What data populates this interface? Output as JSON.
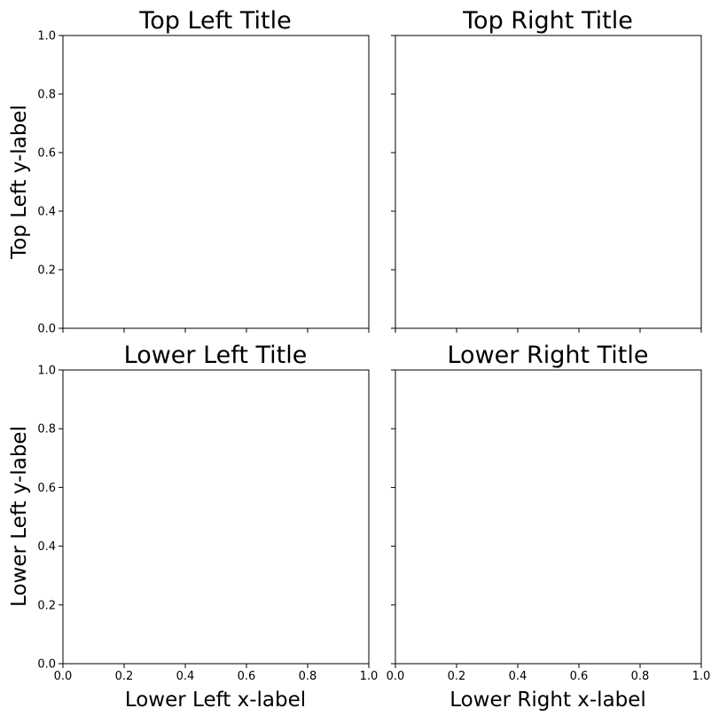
{
  "chart_data": [
    {
      "type": "scatter",
      "title": "Top Left Title",
      "xlabel": "",
      "ylabel": "Top Left y-label",
      "xlim": [
        0,
        1
      ],
      "ylim": [
        0,
        1
      ],
      "xticks": [
        0,
        0.2,
        0.4,
        0.6,
        0.8,
        1
      ],
      "yticks": [
        0,
        0.2,
        0.4,
        0.6,
        0.8,
        1
      ],
      "xtick_labels": [],
      "ytick_labels": [
        "0.0",
        "0.2",
        "0.4",
        "0.6",
        "0.8",
        "1.0"
      ],
      "series": [],
      "grid": false
    },
    {
      "type": "scatter",
      "title": "Top Right Title",
      "xlabel": "",
      "ylabel": "",
      "xlim": [
        0,
        1
      ],
      "ylim": [
        0,
        1
      ],
      "xticks": [
        0,
        0.2,
        0.4,
        0.6,
        0.8,
        1
      ],
      "yticks": [
        0,
        0.2,
        0.4,
        0.6,
        0.8,
        1
      ],
      "xtick_labels": [],
      "ytick_labels": [],
      "series": [],
      "grid": false
    },
    {
      "type": "scatter",
      "title": "Lower Left Title",
      "xlabel": "Lower Left x-label",
      "ylabel": "Lower Left y-label",
      "xlim": [
        0,
        1
      ],
      "ylim": [
        0,
        1
      ],
      "xticks": [
        0,
        0.2,
        0.4,
        0.6,
        0.8,
        1
      ],
      "yticks": [
        0,
        0.2,
        0.4,
        0.6,
        0.8,
        1
      ],
      "xtick_labels": [
        "0.0",
        "0.2",
        "0.4",
        "0.6",
        "0.8",
        "1.0"
      ],
      "ytick_labels": [
        "0.0",
        "0.2",
        "0.4",
        "0.6",
        "0.8",
        "1.0"
      ],
      "series": [],
      "grid": false
    },
    {
      "type": "scatter",
      "title": "Lower Right Title",
      "xlabel": "Lower Right x-label",
      "ylabel": "",
      "xlim": [
        0,
        1
      ],
      "ylim": [
        0,
        1
      ],
      "xticks": [
        0,
        0.2,
        0.4,
        0.6,
        0.8,
        1
      ],
      "yticks": [
        0,
        0.2,
        0.4,
        0.6,
        0.8,
        1
      ],
      "xtick_labels": [
        "0.0",
        "0.2",
        "0.4",
        "0.6",
        "0.8",
        "1.0"
      ],
      "ytick_labels": [],
      "series": [],
      "grid": false
    }
  ]
}
